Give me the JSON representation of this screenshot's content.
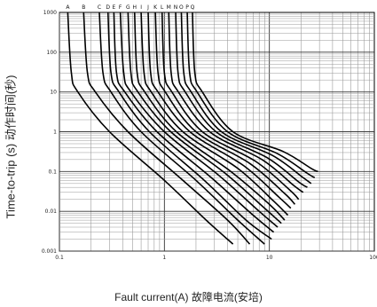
{
  "chart_data": {
    "type": "line",
    "title": "",
    "xlabel": "Fault current(A) 故障电流(安培)",
    "ylabel": "Time-to-trip (s) 动作时间(秒)",
    "xscale": "log",
    "yscale": "log",
    "xlim": [
      0.1,
      100
    ],
    "ylim": [
      0.001,
      1000
    ],
    "grid": true,
    "x_ticks": [
      0.1,
      1,
      10,
      100
    ],
    "x_tick_labels": [
      "0.1",
      "1",
      "10",
      "100"
    ],
    "y_ticks": [
      1000,
      100,
      10,
      1,
      0.1,
      0.01,
      0.001
    ],
    "y_tick_labels": [
      "1000",
      "100",
      "10",
      "1",
      "0.1",
      "0.01",
      "0.001"
    ],
    "curve_labels": [
      "A",
      "B",
      "C",
      "D",
      "E",
      "F",
      "G",
      "H",
      "I",
      "J",
      "K",
      "L",
      "M",
      "N",
      "O",
      "P",
      "Q"
    ],
    "series": [
      {
        "name": "A",
        "values": [
          [
            0.12,
            1000
          ],
          [
            0.13,
            30
          ],
          [
            0.15,
            10
          ],
          [
            0.3,
            1
          ],
          [
            1,
            0.06
          ],
          [
            2.5,
            0.006
          ],
          [
            4.5,
            0.0015
          ]
        ]
      },
      {
        "name": "B",
        "values": [
          [
            0.17,
            1000
          ],
          [
            0.185,
            30
          ],
          [
            0.22,
            10
          ],
          [
            0.45,
            1
          ],
          [
            1.5,
            0.06
          ],
          [
            4,
            0.006
          ],
          [
            6.5,
            0.0015
          ]
        ]
      },
      {
        "name": "C",
        "values": [
          [
            0.24,
            1000
          ],
          [
            0.26,
            30
          ],
          [
            0.31,
            10
          ],
          [
            0.6,
            1
          ],
          [
            2,
            0.06
          ],
          [
            5,
            0.006
          ],
          [
            9,
            0.0015
          ]
        ]
      },
      {
        "name": "D",
        "values": [
          [
            0.29,
            1000
          ],
          [
            0.31,
            30
          ],
          [
            0.37,
            10
          ],
          [
            0.72,
            1
          ],
          [
            2.4,
            0.06
          ],
          [
            6,
            0.006
          ],
          [
            10.5,
            0.002
          ]
        ]
      },
      {
        "name": "E",
        "values": [
          [
            0.33,
            1000
          ],
          [
            0.35,
            30
          ],
          [
            0.42,
            10
          ],
          [
            0.85,
            1
          ],
          [
            2.8,
            0.07
          ],
          [
            7,
            0.008
          ],
          [
            11,
            0.003
          ]
        ]
      },
      {
        "name": "F",
        "values": [
          [
            0.38,
            1000
          ],
          [
            0.41,
            30
          ],
          [
            0.48,
            10
          ],
          [
            1,
            1
          ],
          [
            3.3,
            0.08
          ],
          [
            8,
            0.01
          ],
          [
            12,
            0.004
          ]
        ]
      },
      {
        "name": "G",
        "values": [
          [
            0.45,
            1000
          ],
          [
            0.48,
            30
          ],
          [
            0.56,
            10
          ],
          [
            1.15,
            1
          ],
          [
            3.8,
            0.09
          ],
          [
            9,
            0.012
          ],
          [
            13,
            0.005
          ]
        ]
      },
      {
        "name": "H",
        "values": [
          [
            0.52,
            1000
          ],
          [
            0.55,
            30
          ],
          [
            0.65,
            10
          ],
          [
            1.3,
            1
          ],
          [
            4.3,
            0.1
          ],
          [
            10,
            0.015
          ],
          [
            14,
            0.006
          ]
        ]
      },
      {
        "name": "I",
        "values": [
          [
            0.6,
            1000
          ],
          [
            0.64,
            30
          ],
          [
            0.75,
            10
          ],
          [
            1.5,
            1
          ],
          [
            5,
            0.12
          ],
          [
            11,
            0.018
          ],
          [
            15,
            0.008
          ]
        ]
      },
      {
        "name": "J",
        "values": [
          [
            0.7,
            1000
          ],
          [
            0.74,
            30
          ],
          [
            0.87,
            10
          ],
          [
            1.75,
            1
          ],
          [
            5.7,
            0.14
          ],
          [
            12.5,
            0.022
          ],
          [
            16,
            0.012
          ]
        ]
      },
      {
        "name": "K",
        "values": [
          [
            0.82,
            1000
          ],
          [
            0.87,
            30
          ],
          [
            1.02,
            10
          ],
          [
            2,
            1
          ],
          [
            6.5,
            0.16
          ],
          [
            14,
            0.028
          ],
          [
            17.5,
            0.015
          ]
        ]
      },
      {
        "name": "L",
        "values": [
          [
            0.95,
            1000
          ],
          [
            1,
            30
          ],
          [
            1.18,
            10
          ],
          [
            2.3,
            1
          ],
          [
            7.4,
            0.18
          ],
          [
            15.5,
            0.035
          ],
          [
            19,
            0.02
          ]
        ]
      },
      {
        "name": "M",
        "values": [
          [
            1.1,
            1000
          ],
          [
            1.16,
            30
          ],
          [
            1.36,
            10
          ],
          [
            2.7,
            1
          ],
          [
            8.5,
            0.2
          ],
          [
            17,
            0.045
          ],
          [
            21,
            0.03
          ]
        ]
      },
      {
        "name": "N",
        "values": [
          [
            1.28,
            1000
          ],
          [
            1.35,
            30
          ],
          [
            1.58,
            10
          ],
          [
            3.1,
            1
          ],
          [
            9.6,
            0.22
          ],
          [
            19,
            0.055
          ],
          [
            23,
            0.04
          ]
        ]
      },
      {
        "name": "O",
        "values": [
          [
            1.45,
            1000
          ],
          [
            1.53,
            30
          ],
          [
            1.8,
            10
          ],
          [
            3.5,
            1
          ],
          [
            10.8,
            0.25
          ],
          [
            21,
            0.07
          ],
          [
            25,
            0.05
          ]
        ]
      },
      {
        "name": "P",
        "values": [
          [
            1.65,
            1000
          ],
          [
            1.74,
            30
          ],
          [
            2.05,
            10
          ],
          [
            4,
            1
          ],
          [
            12,
            0.28
          ],
          [
            23,
            0.09
          ],
          [
            27,
            0.07
          ]
        ]
      },
      {
        "name": "Q",
        "values": [
          [
            1.85,
            1000
          ],
          [
            1.95,
            30
          ],
          [
            2.3,
            10
          ],
          [
            4.5,
            1
          ],
          [
            13.5,
            0.32
          ],
          [
            25,
            0.12
          ],
          [
            29,
            0.1
          ]
        ]
      }
    ]
  }
}
